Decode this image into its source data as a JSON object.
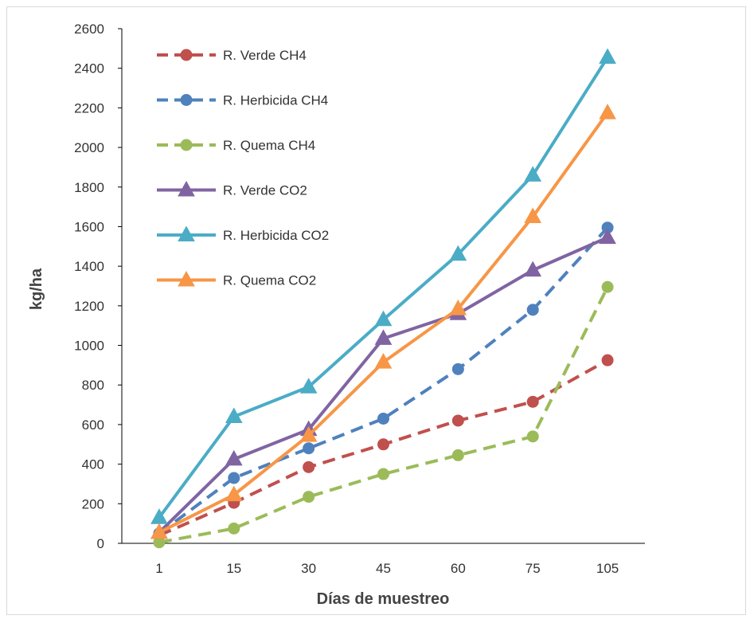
{
  "chart_data": {
    "type": "line",
    "title": "",
    "xlabel": "Días de muestreo",
    "ylabel": "kg/ha",
    "categories": [
      "1",
      "15",
      "30",
      "45",
      "60",
      "75",
      "105"
    ],
    "ylim": [
      0,
      2600
    ],
    "yticks": [
      0,
      200,
      400,
      600,
      800,
      1000,
      1200,
      1400,
      1600,
      1800,
      2000,
      2200,
      2400,
      2600
    ],
    "grid": false,
    "legend_position": "top-left",
    "series": [
      {
        "name": "R. Verde CH4",
        "values": [
          40,
          205,
          385,
          500,
          620,
          715,
          925
        ],
        "color": "#c0504d",
        "dash": true,
        "marker": "circle"
      },
      {
        "name": "R. Herbicida CH4",
        "values": [
          50,
          330,
          480,
          630,
          880,
          1180,
          1595
        ],
        "color": "#4f81bd",
        "dash": true,
        "marker": "circle"
      },
      {
        "name": "R. Quema CH4",
        "values": [
          5,
          75,
          235,
          350,
          445,
          540,
          1295
        ],
        "color": "#9bbb59",
        "dash": true,
        "marker": "circle"
      },
      {
        "name": "R. Verde CO2",
        "values": [
          55,
          425,
          575,
          1035,
          1160,
          1380,
          1545
        ],
        "color": "#8064a2",
        "dash": false,
        "marker": "triangle"
      },
      {
        "name": "R. Herbicida  CO2",
        "values": [
          130,
          640,
          790,
          1130,
          1460,
          1860,
          2455
        ],
        "color": "#4bacc6",
        "dash": false,
        "marker": "triangle"
      },
      {
        "name": "R. Quema  CO2",
        "values": [
          55,
          245,
          545,
          915,
          1185,
          1650,
          2175
        ],
        "color": "#f79646",
        "dash": false,
        "marker": "triangle"
      }
    ]
  }
}
